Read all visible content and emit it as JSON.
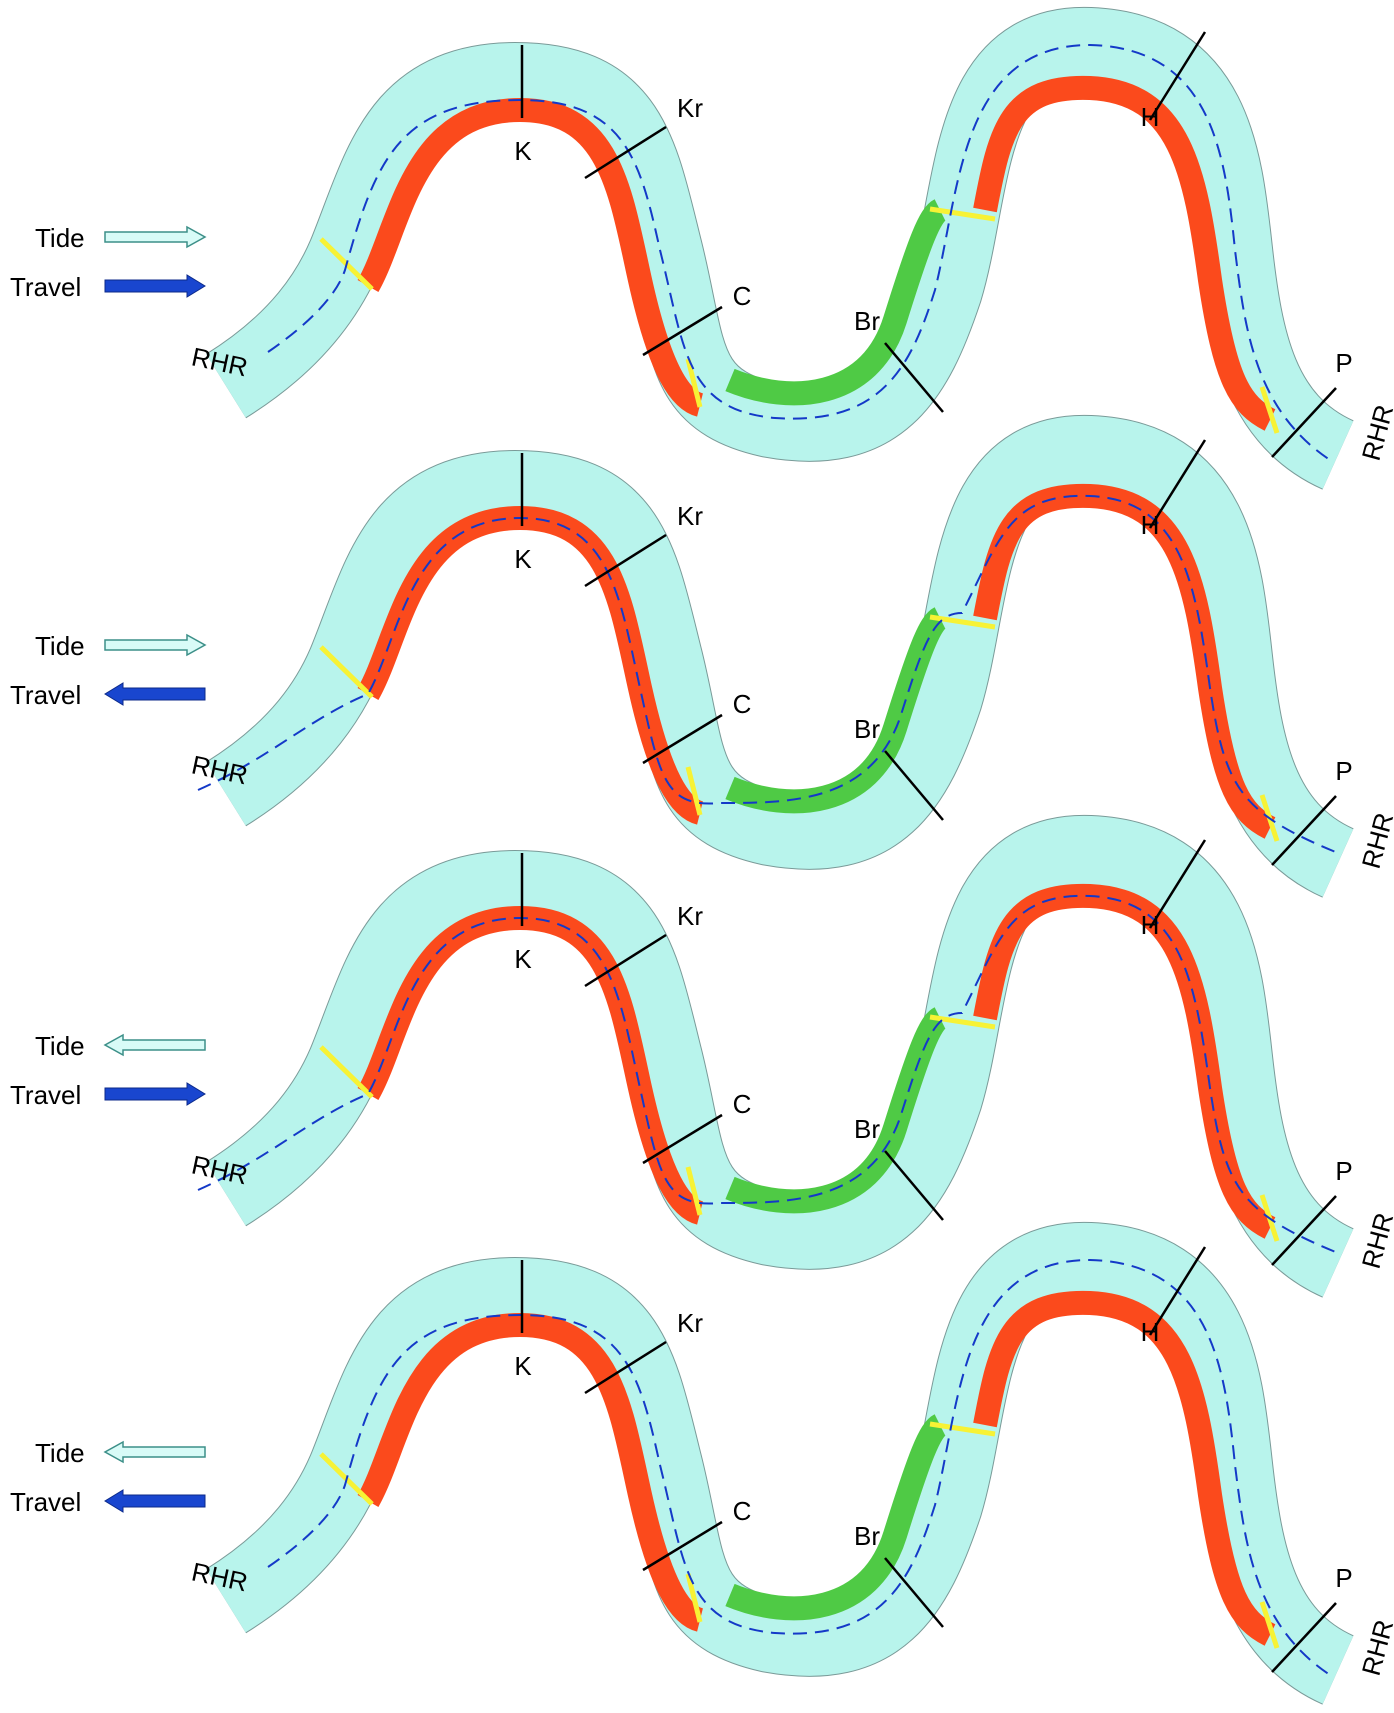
{
  "legend_labels": {
    "tide": "Tide",
    "travel": "Travel"
  },
  "station_labels": {
    "rhr": "RHR",
    "k": "K",
    "kr": "Kr",
    "c": "C",
    "br": "Br",
    "h": "H",
    "p": "P"
  },
  "panels": [
    {
      "tide_direction": "right",
      "travel_direction": "right",
      "route": "outer"
    },
    {
      "tide_direction": "right",
      "travel_direction": "left",
      "route": "inner"
    },
    {
      "tide_direction": "left",
      "travel_direction": "right",
      "route": "inner"
    },
    {
      "tide_direction": "left",
      "travel_direction": "left",
      "route": "outer"
    }
  ],
  "colors": {
    "channel": "#b8f4ec",
    "channel_border": "#7a9a98",
    "red_zone": "#fb4a1c",
    "green_zone": "#4fca45",
    "boundary": "#f7f235",
    "route": "#1439c8",
    "tide_arrow_fill": "#d8fbf7",
    "tide_arrow_stroke": "#3c8f88",
    "travel_arrow": "#1946cf",
    "marker": "#000000"
  }
}
